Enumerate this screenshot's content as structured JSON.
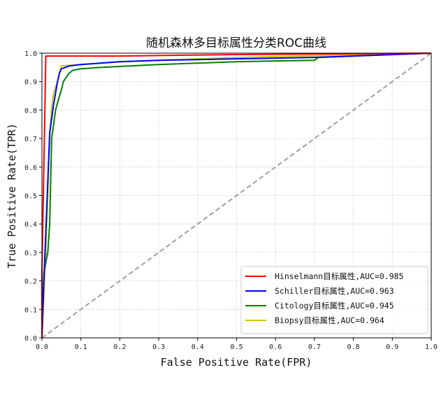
{
  "chart_data": {
    "type": "line",
    "title": "随机森林多目标属性分类ROC曲线",
    "xlabel": "False Positive Rate(FPR)",
    "ylabel": "True Positive Rate(TPR)",
    "xlim": [
      0.0,
      1.0
    ],
    "ylim": [
      0.0,
      1.0
    ],
    "xticks": [
      "0.0",
      "0.1",
      "0.2",
      "0.3",
      "0.4",
      "0.5",
      "0.6",
      "0.7",
      "0.8",
      "0.9",
      "1.0"
    ],
    "yticks": [
      "0.0",
      "0.1",
      "0.2",
      "0.3",
      "0.4",
      "0.5",
      "0.6",
      "0.7",
      "0.8",
      "0.9",
      "1.0"
    ],
    "grid": true,
    "legend_position": "lower right",
    "series": [
      {
        "name": "Hinselmann目标属性,AUC=0.985",
        "color": "#ff0000",
        "auc": 0.985,
        "x": [
          0.0,
          0.0,
          0.01,
          0.01,
          0.2,
          0.5,
          1.0
        ],
        "y": [
          0.0,
          0.23,
          0.99,
          0.99,
          0.99,
          0.995,
          1.0
        ]
      },
      {
        "name": "Schiller目标属性,AUC=0.963",
        "color": "#0000ff",
        "auc": 0.963,
        "x": [
          0.0,
          0.005,
          0.02,
          0.03,
          0.035,
          0.04,
          0.045,
          0.05,
          0.07,
          0.1,
          0.15,
          0.2,
          0.3,
          0.5,
          0.7,
          1.0
        ],
        "y": [
          0.0,
          0.2,
          0.72,
          0.82,
          0.86,
          0.9,
          0.93,
          0.945,
          0.955,
          0.96,
          0.965,
          0.97,
          0.975,
          0.98,
          0.985,
          1.0
        ]
      },
      {
        "name": "Citology目标属性,AUC=0.945",
        "color": "#008000",
        "auc": 0.945,
        "x": [
          0.0,
          0.005,
          0.015,
          0.02,
          0.025,
          0.035,
          0.045,
          0.05,
          0.055,
          0.06,
          0.07,
          0.08,
          0.1,
          0.15,
          0.3,
          0.5,
          0.7,
          0.71,
          0.8,
          1.0
        ],
        "y": [
          0.0,
          0.23,
          0.3,
          0.4,
          0.7,
          0.8,
          0.85,
          0.87,
          0.9,
          0.91,
          0.93,
          0.94,
          0.945,
          0.95,
          0.96,
          0.97,
          0.975,
          0.985,
          0.99,
          1.0
        ]
      },
      {
        "name": "Biopsy目标属性,AUC=0.964",
        "color": "#c8c800",
        "auc": 0.964,
        "x": [
          0.0,
          0.01,
          0.02,
          0.025,
          0.03,
          0.04,
          0.045,
          0.05,
          0.1,
          0.2,
          0.3,
          0.5,
          1.0
        ],
        "y": [
          0.0,
          0.3,
          0.7,
          0.81,
          0.86,
          0.9,
          0.93,
          0.955,
          0.96,
          0.97,
          0.975,
          0.985,
          1.0
        ]
      },
      {
        "name": "chance",
        "color": "#a0a0a0",
        "dashed": true,
        "x": [
          0.0,
          1.0
        ],
        "y": [
          0.0,
          1.0
        ]
      }
    ]
  }
}
